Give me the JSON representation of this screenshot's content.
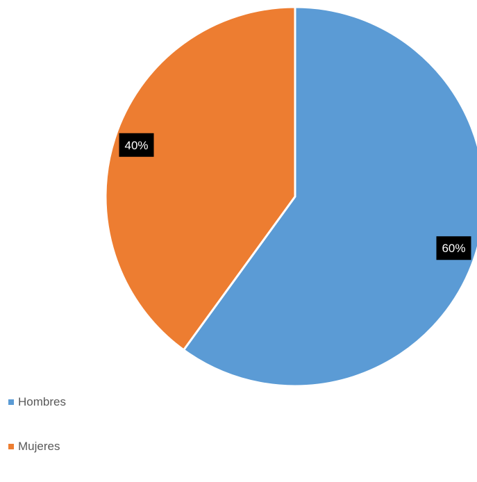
{
  "chart_data": {
    "type": "pie",
    "title": "",
    "categories": [
      "Hombres",
      "Mujeres"
    ],
    "values": [
      60,
      40
    ],
    "data_labels": [
      "60%",
      "40%"
    ],
    "colors": [
      "#5B9BD5",
      "#ED7D31"
    ],
    "start_angle_deg": 0,
    "direction": "clockwise",
    "legend_position": "bottom-left"
  }
}
